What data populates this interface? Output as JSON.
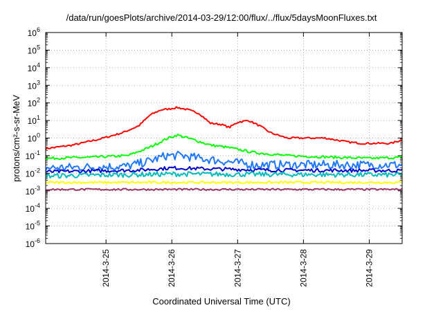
{
  "chart_data": {
    "type": "line",
    "title": "/data/run/goesPlots/archive/2014-03-29/12:00/flux/../flux/5daysMoonFluxes.txt",
    "xlabel": "Coordinated Universal Time (UTC)",
    "ylabel": "protons/cm²-s-sr-MeV",
    "y_scale": "log",
    "ylim": [
      1e-06,
      1000000
    ],
    "xlim": [
      "2014-03-24T02:00",
      "2014-03-29T12:00"
    ],
    "x_ticks": [
      "2014-3-25",
      "2014-3-26",
      "2014-3-27",
      "2014-3-28",
      "2014-3-29"
    ],
    "y_ticks": [
      {
        "base": "10",
        "exp": "-6"
      },
      {
        "base": "10",
        "exp": "-5"
      },
      {
        "base": "10",
        "exp": "-4"
      },
      {
        "base": "10",
        "exp": "-3"
      },
      {
        "base": "10",
        "exp": "-2"
      },
      {
        "base": "10",
        "exp": "-1"
      },
      {
        "base": "10",
        "exp": "0"
      },
      {
        "base": "10",
        "exp": "1"
      },
      {
        "base": "10",
        "exp": "2"
      },
      {
        "base": "10",
        "exp": "3"
      },
      {
        "base": "10",
        "exp": "4"
      },
      {
        "base": "10",
        "exp": "5"
      },
      {
        "base": "10",
        "exp": "6"
      }
    ],
    "grid": true,
    "series": [
      {
        "color": "#ff0000",
        "noise": 0.05,
        "x": [
          "2014-03-24T02:00",
          "2014-03-24T12:00",
          "2014-03-24T22:00",
          "2014-03-25T06:00",
          "2014-03-25T12:00",
          "2014-03-25T16:00",
          "2014-03-25T20:00",
          "2014-03-25T23:00",
          "2014-03-26T02:00",
          "2014-03-26T06:00",
          "2014-03-26T10:00",
          "2014-03-26T14:00",
          "2014-03-26T18:00",
          "2014-03-26T21:00",
          "2014-03-27T00:00",
          "2014-03-27T04:00",
          "2014-03-27T08:00",
          "2014-03-27T12:00",
          "2014-03-27T18:00",
          "2014-03-28T00:00",
          "2014-03-28T08:00",
          "2014-03-28T16:00",
          "2014-03-28T21:00",
          "2014-03-29T02:00",
          "2014-03-29T08:00",
          "2014-03-29T12:00"
        ],
        "y": [
          0.25,
          0.4,
          0.9,
          2,
          5,
          20,
          40,
          45,
          55,
          40,
          25,
          7,
          6,
          4,
          8,
          10,
          5,
          2,
          1,
          1,
          1,
          0.6,
          0.5,
          0.5,
          0.5,
          0.8
        ]
      },
      {
        "color": "#00ff00",
        "noise": 0.07,
        "x": [
          "2014-03-24T02:00",
          "2014-03-24T18:00",
          "2014-03-25T08:00",
          "2014-03-25T16:00",
          "2014-03-25T22:00",
          "2014-03-26T02:00",
          "2014-03-26T08:00",
          "2014-03-26T14:00",
          "2014-03-26T20:00",
          "2014-03-27T06:00",
          "2014-03-27T18:00",
          "2014-03-28T12:00",
          "2014-03-29T00:00",
          "2014-03-29T12:00"
        ],
        "y": [
          0.07,
          0.08,
          0.1,
          0.3,
          0.9,
          1.5,
          0.8,
          0.4,
          0.3,
          0.15,
          0.1,
          0.08,
          0.07,
          0.08
        ]
      },
      {
        "color": "#1e78ff",
        "noise": 0.25,
        "x": [
          "2014-03-24T02:00",
          "2014-03-25T08:00",
          "2014-03-25T16:00",
          "2014-03-25T22:00",
          "2014-03-26T04:00",
          "2014-03-26T10:00",
          "2014-03-26T18:00",
          "2014-03-27T06:00",
          "2014-03-28T12:00",
          "2014-03-29T12:00"
        ],
        "y": [
          0.02,
          0.025,
          0.05,
          0.1,
          0.1,
          0.07,
          0.05,
          0.03,
          0.03,
          0.03
        ]
      },
      {
        "color": "#0000cc",
        "noise": 0.1,
        "x": [
          "2014-03-24T02:00",
          "2014-03-25T12:00",
          "2014-03-26T00:00",
          "2014-03-26T12:00",
          "2014-03-27T12:00",
          "2014-03-29T12:00"
        ],
        "y": [
          0.012,
          0.015,
          0.02,
          0.018,
          0.015,
          0.014
        ]
      },
      {
        "color": "#00bbbb",
        "noise": 0.14,
        "x": [
          "2014-03-24T02:00",
          "2014-03-26T00:00",
          "2014-03-29T12:00"
        ],
        "y": [
          0.007,
          0.009,
          0.008
        ]
      },
      {
        "color": "#ffff00",
        "noise": 0.06,
        "x": [
          "2014-03-24T02:00",
          "2014-03-29T12:00"
        ],
        "y": [
          0.003,
          0.003
        ]
      },
      {
        "color": "#993366",
        "noise": 0.05,
        "x": [
          "2014-03-24T02:00",
          "2014-03-29T12:00"
        ],
        "y": [
          0.0012,
          0.0012
        ]
      }
    ]
  }
}
